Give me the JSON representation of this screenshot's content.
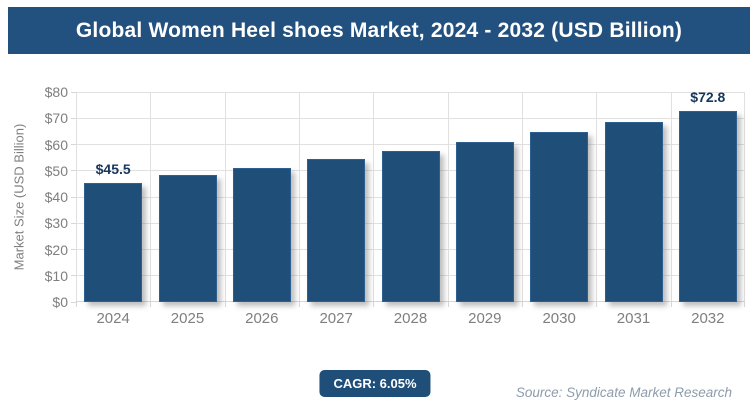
{
  "chart_data": {
    "type": "bar",
    "title": "Global Women Heel shoes Market, 2024 - 2032 (USD Billion)",
    "categories": [
      "2024",
      "2025",
      "2026",
      "2027",
      "2028",
      "2029",
      "2030",
      "2031",
      "2032"
    ],
    "values": [
      45.5,
      48.3,
      51.2,
      54.3,
      57.5,
      61.0,
      64.7,
      68.6,
      72.8
    ],
    "data_labels": [
      "$45.5",
      "",
      "",
      "",
      "",
      "",
      "",
      "",
      "$72.8"
    ],
    "xlabel": "",
    "ylabel": "Market Size (USD Billion)",
    "ylim": [
      0,
      80
    ],
    "ytick_step": 10,
    "ytick_labels": [
      "$0",
      "$10",
      "$20",
      "$30",
      "$40",
      "$50",
      "$60",
      "$70",
      "$80"
    ],
    "grid": true,
    "legend": "none"
  },
  "footer": {
    "cagr": "CAGR: 6.05%",
    "source": "Source: Syndicate Market Research"
  },
  "colors": {
    "header_bg": "#23517f",
    "bar_fill": "#1f4e79",
    "bar_edge": "#2d5f8f",
    "gridline": "#e0e0e0",
    "axis_text": "#7f7f7f",
    "data_label_text": "#17365d",
    "badge_bg": "#1f4e79",
    "badge_text": "#ffffff",
    "source_text": "#8d9cac",
    "title_text": "#ffffff"
  }
}
